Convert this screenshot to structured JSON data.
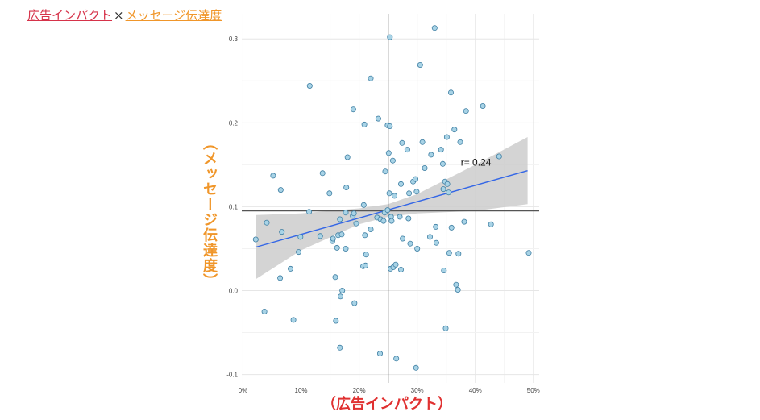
{
  "header": {
    "title_part1": "広告インパクト",
    "separator": "×",
    "title_part2": "メッセージ伝達度"
  },
  "colors": {
    "x_label": "#E03131",
    "y_label": "#F0962A",
    "title_part1": "#D6334A",
    "title_part2": "#F0962A",
    "points_fill": "#A8D3E6",
    "points_stroke": "#3F7FA3",
    "fit_line": "#3366E6",
    "confidence_band": "#CCCCCC",
    "reference_lines": "#555555"
  },
  "chart_data": {
    "type": "scatter",
    "xlabel": "（広告インパクト）",
    "ylabel": "（メッセージ伝達度）",
    "x_ticks": [
      "0%",
      "10%",
      "20%",
      "30%",
      "40%",
      "50%"
    ],
    "y_ticks": [
      "-0.1",
      "0.0",
      "0.1",
      "0.2",
      "0.3"
    ],
    "x_tick_values": [
      0,
      0.1,
      0.2,
      0.3,
      0.4,
      0.5
    ],
    "y_tick_values": [
      -0.1,
      0,
      0.1,
      0.2,
      0.3
    ],
    "xlim": [
      -0.002,
      0.51
    ],
    "ylim": [
      -0.11,
      0.33
    ],
    "grid": true,
    "reference_lines": {
      "x": 0.25,
      "y": 0.095
    },
    "fit": {
      "x": [
        0.023,
        0.49
      ],
      "y": [
        0.052,
        0.143
      ]
    },
    "band": {
      "x": [
        0.023,
        0.1,
        0.2,
        0.25,
        0.3,
        0.4,
        0.49
      ],
      "lo": [
        0.014,
        0.048,
        0.079,
        0.088,
        0.092,
        0.095,
        0.103
      ],
      "hi": [
        0.09,
        0.092,
        0.098,
        0.103,
        0.115,
        0.15,
        0.183
      ]
    },
    "annotation": {
      "text": "r= 0.24",
      "x": 0.375,
      "y": 0.149
    },
    "points": [
      [
        0.022,
        0.061
      ],
      [
        0.037,
        -0.025
      ],
      [
        0.041,
        0.081
      ],
      [
        0.052,
        0.137
      ],
      [
        0.064,
        0.015
      ],
      [
        0.065,
        0.12
      ],
      [
        0.067,
        0.07
      ],
      [
        0.082,
        0.026
      ],
      [
        0.087,
        -0.035
      ],
      [
        0.096,
        0.046
      ],
      [
        0.099,
        0.064
      ],
      [
        0.114,
        0.094
      ],
      [
        0.115,
        0.244
      ],
      [
        0.133,
        0.065
      ],
      [
        0.137,
        0.14
      ],
      [
        0.149,
        0.116
      ],
      [
        0.154,
        0.059
      ],
      [
        0.155,
        0.062
      ],
      [
        0.159,
        0.016
      ],
      [
        0.16,
        -0.036
      ],
      [
        0.162,
        0.051
      ],
      [
        0.164,
        0.066
      ],
      [
        0.167,
        0.085
      ],
      [
        0.167,
        -0.068
      ],
      [
        0.168,
        -0.007
      ],
      [
        0.17,
        0.067
      ],
      [
        0.171,
        0.0
      ],
      [
        0.177,
        0.093
      ],
      [
        0.177,
        0.05
      ],
      [
        0.178,
        0.123
      ],
      [
        0.18,
        0.159
      ],
      [
        0.189,
        0.089
      ],
      [
        0.19,
        0.216
      ],
      [
        0.191,
        0.092
      ],
      [
        0.192,
        -0.015
      ],
      [
        0.195,
        0.08
      ],
      [
        0.207,
        0.029
      ],
      [
        0.208,
        0.102
      ],
      [
        0.209,
        0.198
      ],
      [
        0.21,
        0.066
      ],
      [
        0.211,
        0.03
      ],
      [
        0.212,
        0.043
      ],
      [
        0.22,
        0.073
      ],
      [
        0.22,
        0.253
      ],
      [
        0.231,
        0.087
      ],
      [
        0.233,
        0.205
      ],
      [
        0.236,
        -0.075
      ],
      [
        0.237,
        0.085
      ],
      [
        0.242,
        0.083
      ],
      [
        0.244,
        0.093
      ],
      [
        0.245,
        0.142
      ],
      [
        0.249,
        0.197
      ],
      [
        0.249,
        0.096
      ],
      [
        0.251,
        0.164
      ],
      [
        0.252,
        0.116
      ],
      [
        0.253,
        0.196
      ],
      [
        0.253,
        0.302
      ],
      [
        0.254,
        0.026
      ],
      [
        0.255,
        0.088
      ],
      [
        0.256,
        0.083
      ],
      [
        0.258,
        0.155
      ],
      [
        0.259,
        0.028
      ],
      [
        0.261,
        0.113
      ],
      [
        0.263,
        0.031
      ],
      [
        0.264,
        -0.081
      ],
      [
        0.27,
        0.088
      ],
      [
        0.272,
        0.127
      ],
      [
        0.272,
        0.025
      ],
      [
        0.274,
        0.176
      ],
      [
        0.275,
        0.062
      ],
      [
        0.283,
        0.168
      ],
      [
        0.285,
        0.086
      ],
      [
        0.286,
        0.116
      ],
      [
        0.288,
        0.056
      ],
      [
        0.293,
        0.13
      ],
      [
        0.297,
        0.133
      ],
      [
        0.298,
        -0.092
      ],
      [
        0.299,
        0.118
      ],
      [
        0.3,
        0.05
      ],
      [
        0.305,
        0.269
      ],
      [
        0.309,
        0.177
      ],
      [
        0.313,
        0.146
      ],
      [
        0.322,
        0.064
      ],
      [
        0.324,
        0.162
      ],
      [
        0.33,
        0.313
      ],
      [
        0.332,
        0.076
      ],
      [
        0.333,
        0.057
      ],
      [
        0.341,
        0.168
      ],
      [
        0.344,
        0.151
      ],
      [
        0.345,
        0.121
      ],
      [
        0.346,
        0.024
      ],
      [
        0.348,
        0.13
      ],
      [
        0.349,
        -0.045
      ],
      [
        0.351,
        0.183
      ],
      [
        0.352,
        0.127
      ],
      [
        0.354,
        0.117
      ],
      [
        0.355,
        0.045
      ],
      [
        0.358,
        0.236
      ],
      [
        0.359,
        0.075
      ],
      [
        0.364,
        0.192
      ],
      [
        0.367,
        0.007
      ],
      [
        0.37,
        0.001
      ],
      [
        0.371,
        0.044
      ],
      [
        0.374,
        0.177
      ],
      [
        0.381,
        0.082
      ],
      [
        0.384,
        0.214
      ],
      [
        0.413,
        0.22
      ],
      [
        0.427,
        0.079
      ],
      [
        0.441,
        0.16
      ],
      [
        0.492,
        0.045
      ]
    ]
  }
}
